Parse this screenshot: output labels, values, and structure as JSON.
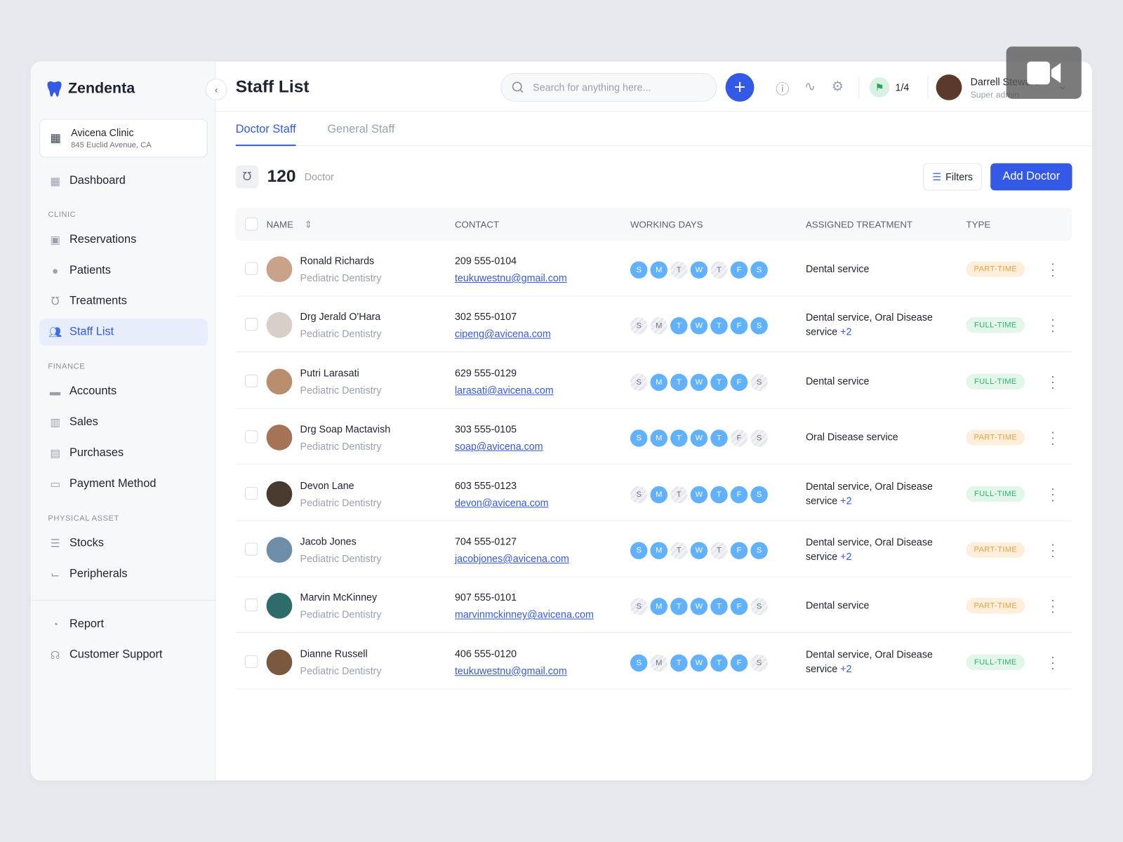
{
  "app": {
    "name": "Zendenta"
  },
  "clinic": {
    "name": "Avicena Clinic",
    "address": "845 Euclid Avenue, CA"
  },
  "sidebar": {
    "dashboard": "Dashboard",
    "sections": [
      {
        "title": "CLINIC",
        "items": [
          "Reservations",
          "Patients",
          "Treatments",
          "Staff List"
        ]
      },
      {
        "title": "FINANCE",
        "items": [
          "Accounts",
          "Sales",
          "Purchases",
          "Payment Method"
        ]
      },
      {
        "title": "PHYSICAL ASSET",
        "items": [
          "Stocks",
          "Peripherals"
        ]
      }
    ],
    "bottom": [
      "Report",
      "Customer Support"
    ]
  },
  "header": {
    "title": "Staff List",
    "search_placeholder": "Search for anything here...",
    "flag_count": "1/4",
    "user_name": "Darrell Steward",
    "user_role": "Super admin"
  },
  "tabs": [
    "Doctor Staff",
    "General Staff"
  ],
  "summary": {
    "count": "120",
    "label": "Doctor",
    "filters": "Filters",
    "add": "Add Doctor"
  },
  "table": {
    "headers": [
      "NAME",
      "CONTACT",
      "WORKING DAYS",
      "ASSIGNED TREATMENT",
      "TYPE"
    ],
    "day_letters": [
      "S",
      "M",
      "T",
      "W",
      "T",
      "F",
      "S"
    ],
    "rows": [
      {
        "name": "Ronald Richards",
        "specialty": "Pediatric Dentistry",
        "phone": "209 555-0104",
        "email": "teukuwestnu@gmail.com",
        "days": [
          1,
          1,
          0,
          1,
          0,
          1,
          1
        ],
        "treatment": "Dental service",
        "more": "",
        "type": "PART-TIME"
      },
      {
        "name": "Drg Jerald O'Hara",
        "specialty": "Pediatric Dentistry",
        "phone": "302 555-0107",
        "email": "cipeng@avicena.com",
        "days": [
          0,
          0,
          1,
          1,
          1,
          1,
          1
        ],
        "treatment": "Dental service, Oral Disease service",
        "more": "+2",
        "type": "FULL-TIME"
      },
      {
        "name": "Putri Larasati",
        "specialty": "Pediatric Dentistry",
        "phone": "629 555-0129",
        "email": "larasati@avicena.com",
        "days": [
          0,
          1,
          1,
          1,
          1,
          1,
          0
        ],
        "treatment": "Dental service",
        "more": "",
        "type": "FULL-TIME"
      },
      {
        "name": "Drg Soap Mactavish",
        "specialty": "Pediatric Dentistry",
        "phone": "303 555-0105",
        "email": "soap@avicena.com",
        "days": [
          1,
          1,
          1,
          1,
          1,
          0,
          0
        ],
        "treatment": "Oral Disease service",
        "more": "",
        "type": "PART-TIME"
      },
      {
        "name": "Devon Lane",
        "specialty": "Pediatric Dentistry",
        "phone": "603 555-0123",
        "email": "devon@avicena.com",
        "days": [
          0,
          1,
          0,
          1,
          1,
          1,
          1
        ],
        "treatment": "Dental service, Oral Disease service",
        "more": "+2",
        "type": "FULL-TIME"
      },
      {
        "name": "Jacob Jones",
        "specialty": "Pediatric Dentistry",
        "phone": "704 555-0127",
        "email": "jacobjones@avicena.com",
        "days": [
          1,
          1,
          0,
          1,
          0,
          1,
          1
        ],
        "treatment": "Dental service, Oral Disease service",
        "more": "+2",
        "type": "PART-TIME"
      },
      {
        "name": "Marvin McKinney",
        "specialty": "Pediatric Dentistry",
        "phone": "907 555-0101",
        "email": "marvinmckinney@avicena.com",
        "days": [
          0,
          1,
          1,
          1,
          1,
          1,
          0
        ],
        "treatment": "Dental service",
        "more": "",
        "type": "PART-TIME"
      },
      {
        "name": "Dianne Russell",
        "specialty": "Pediatric Dentistry",
        "phone": "406 555-0120",
        "email": "teukuwestnu@gmail.com",
        "days": [
          1,
          0,
          1,
          1,
          1,
          1,
          0
        ],
        "treatment": "Dental service, Oral Disease service",
        "more": "+2",
        "type": "FULL-TIME"
      }
    ]
  }
}
